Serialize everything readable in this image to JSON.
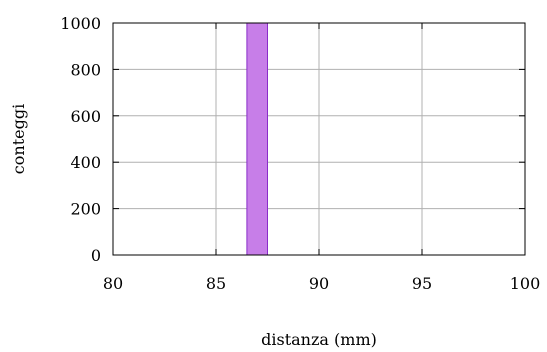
{
  "chart_data": {
    "type": "bar",
    "title": "",
    "xlabel": "distanza (mm)",
    "ylabel": "conteggi",
    "xlim": [
      80,
      100
    ],
    "ylim": [
      0,
      1000
    ],
    "x_ticks": [
      80,
      85,
      90,
      95,
      100
    ],
    "y_ticks": [
      0,
      200,
      400,
      600,
      800,
      1000
    ],
    "grid": true,
    "bars": [
      {
        "x_start": 86.5,
        "x_end": 87.5,
        "value": 1000
      }
    ],
    "colors": {
      "bar_fill": "#c77ee8",
      "bar_edge": "#8a2dc9",
      "grid": "#b0b0b0",
      "axis": "#000000"
    }
  }
}
